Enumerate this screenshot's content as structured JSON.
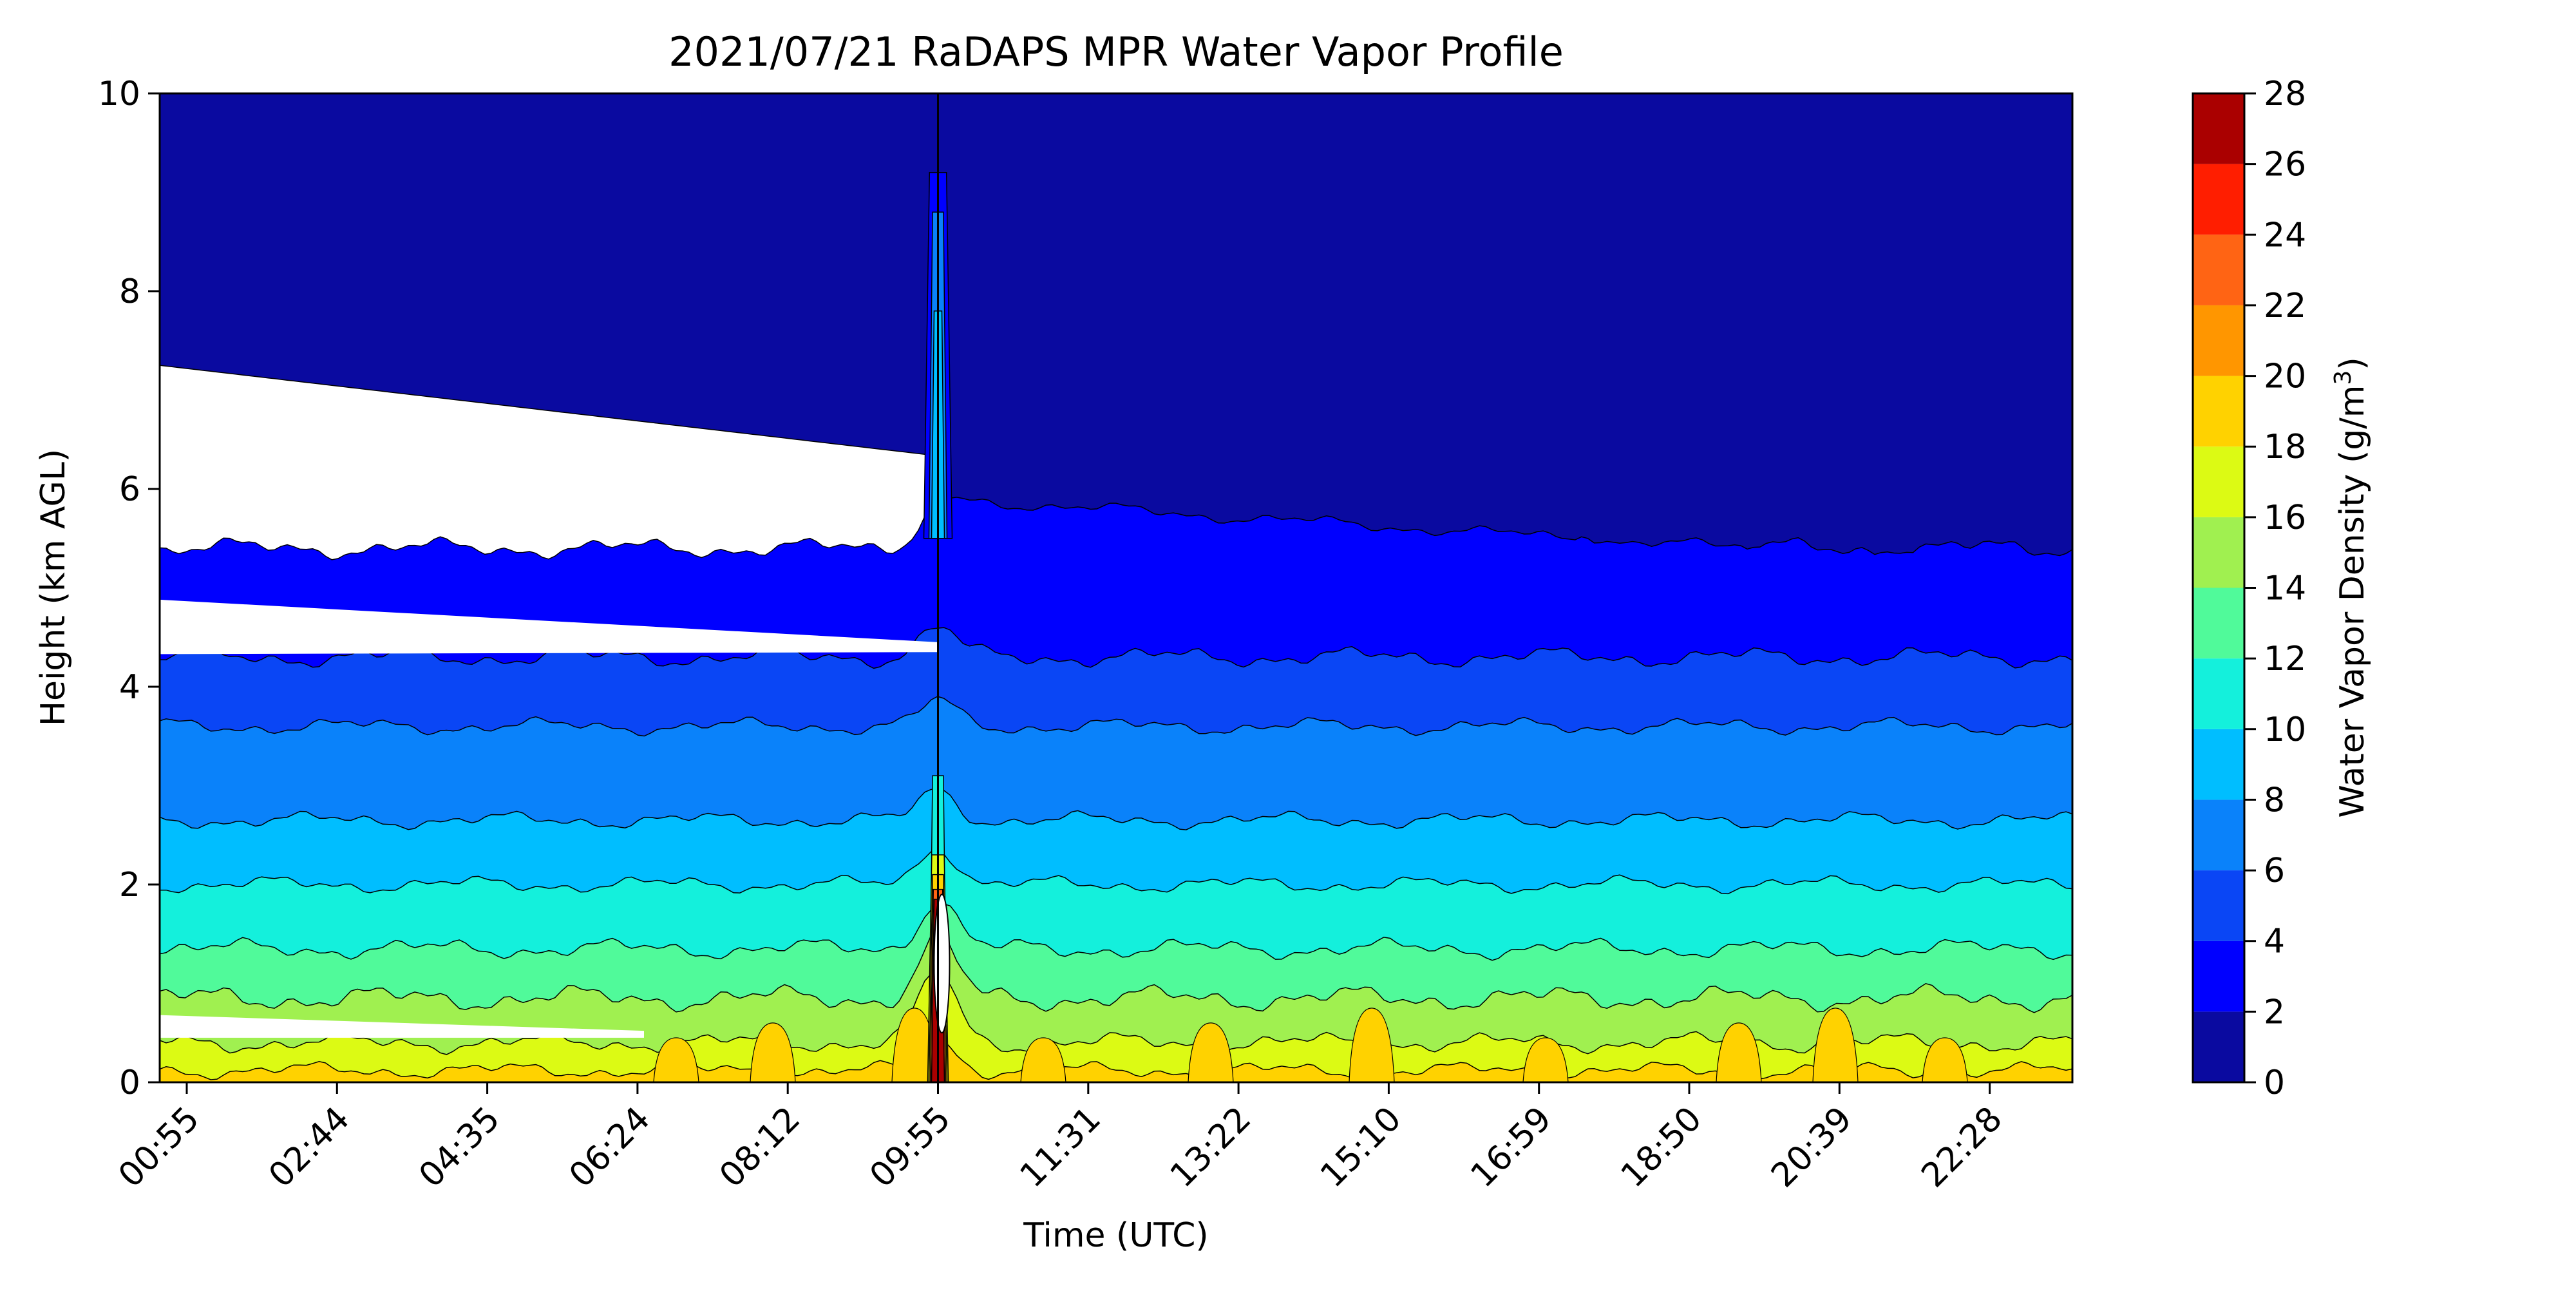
{
  "chart_data": {
    "type": "heatmap",
    "title": "2021/07/21 RaDAPS MPR Water Vapor Profile",
    "xlabel": "Time (UTC)",
    "ylabel": "Height (km AGL)",
    "x_ticks": [
      "00:55",
      "02:44",
      "04:35",
      "06:24",
      "08:12",
      "09:55",
      "11:31",
      "13:22",
      "15:10",
      "16:59",
      "18:50",
      "20:39",
      "22:28"
    ],
    "y_ticks": [
      0,
      2,
      4,
      6,
      8,
      10
    ],
    "ylim": [
      0,
      10
    ],
    "colorbar": {
      "label": "Water Vapor Density (g/m",
      "label_sup": "3",
      "label_end": ")",
      "ticks": [
        0,
        2,
        4,
        6,
        8,
        10,
        12,
        14,
        16,
        18,
        20,
        22,
        24,
        26,
        28
      ],
      "levels": [
        0,
        2,
        4,
        6,
        8,
        10,
        12,
        14,
        16,
        18,
        20,
        22,
        24,
        26,
        28
      ],
      "colors": [
        "#0a0aa0",
        "#0000ff",
        "#0a46f5",
        "#0a82fa",
        "#00beff",
        "#14f0dc",
        "#50fa9a",
        "#a0f050",
        "#dcfa14",
        "#ffd200",
        "#ff9600",
        "#ff6414",
        "#ff1e00",
        "#aa0000"
      ]
    },
    "contour_bands": [
      {
        "level": 2,
        "base_height": 5.4,
        "amp": 0.12,
        "bump": 0.5
      },
      {
        "level": 4,
        "base_height": 4.3,
        "amp": 0.12,
        "bump": 0.3
      },
      {
        "level": 6,
        "base_height": 3.6,
        "amp": 0.1,
        "bump": 0.25
      },
      {
        "level": 8,
        "base_height": 2.65,
        "amp": 0.1,
        "bump": 0.3
      },
      {
        "level": 10,
        "base_height": 2.0,
        "amp": 0.1,
        "bump": 0.4
      },
      {
        "level": 12,
        "base_height": 1.35,
        "amp": 0.12,
        "bump": 0.5
      },
      {
        "level": 14,
        "base_height": 0.85,
        "amp": 0.15,
        "bump": 0.6
      },
      {
        "level": 16,
        "base_height": 0.4,
        "amp": 0.12,
        "bump": 0.7
      },
      {
        "level": 18,
        "base_height": 0.12,
        "amp": 0.1,
        "bump": 0.3
      }
    ],
    "top_band_low_height_left": 7.25,
    "top_band_low_height_right": 5.0,
    "gap_band_upper_left": 4.85,
    "gap_band_lower_right_at_0955": 4.45
  }
}
